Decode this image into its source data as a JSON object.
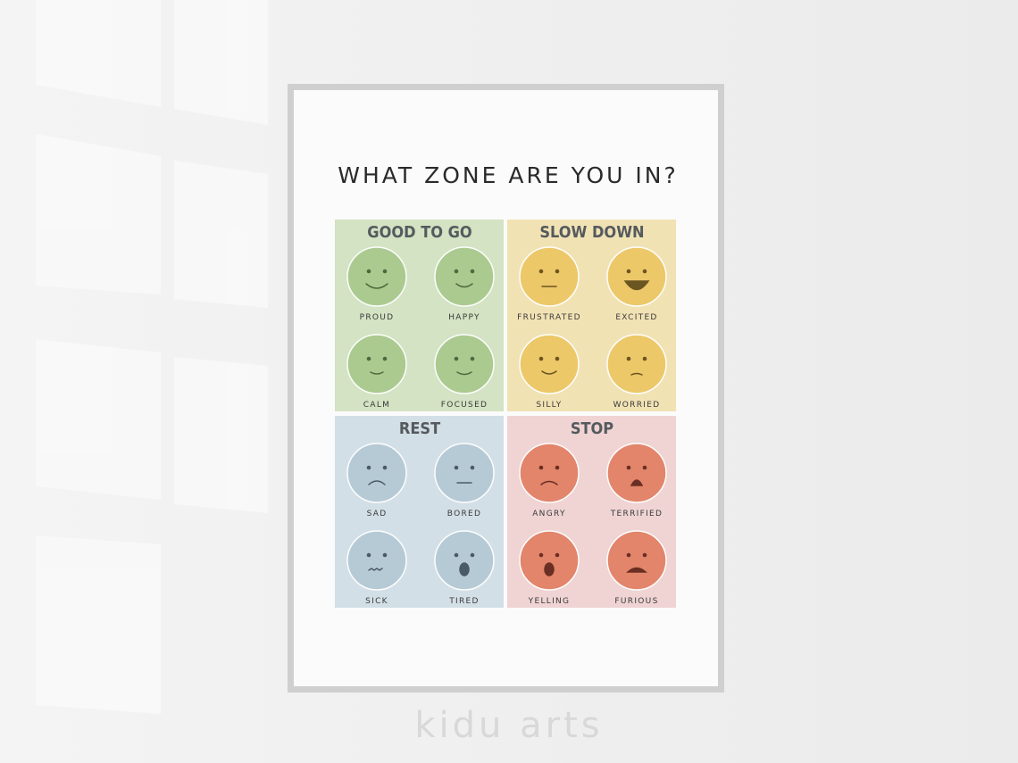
{
  "poster": {
    "title": "WHAT ZONE ARE YOU IN?",
    "zones": [
      {
        "name": "GOOD TO GO",
        "emotions": [
          "PROUD",
          "HAPPY",
          "CALM",
          "FOCUSED"
        ]
      },
      {
        "name": "SLOW DOWN",
        "emotions": [
          "FRUSTRATED",
          "EXCITED",
          "SILLY",
          "WORRIED"
        ]
      },
      {
        "name": "REST",
        "emotions": [
          "SAD",
          "BORED",
          "SICK",
          "TIRED"
        ]
      },
      {
        "name": "STOP",
        "emotions": [
          "ANGRY",
          "TERRIFIED",
          "YELLING",
          "FURIOUS"
        ]
      }
    ]
  },
  "watermark": "kidu arts"
}
